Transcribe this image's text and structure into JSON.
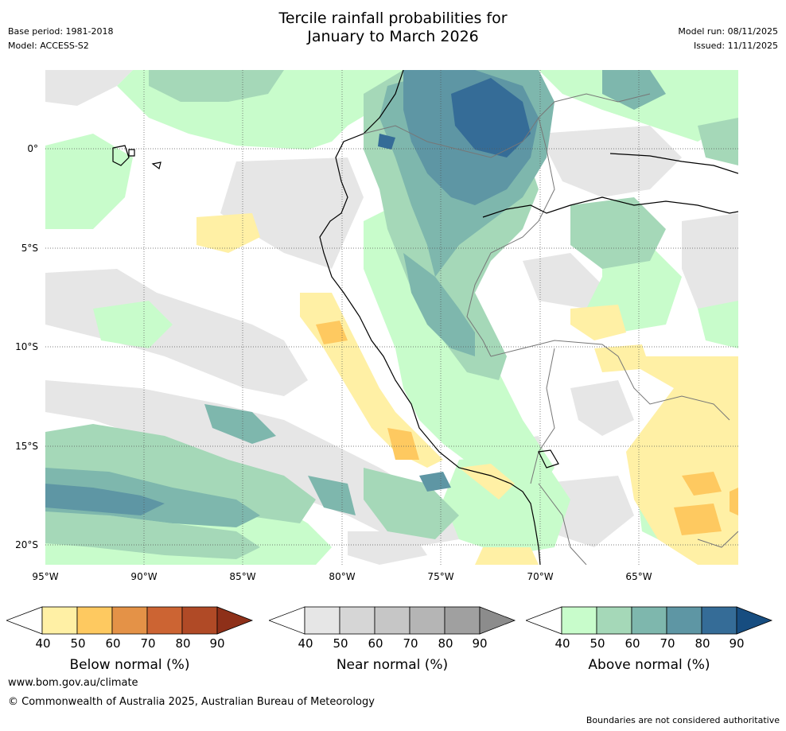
{
  "header": {
    "title_line1": "Tercile rainfall probabilities for",
    "title_line2": "January to March 2026",
    "base_period": "Base period: 1981-2018",
    "model": "Model: ACCESS-S2",
    "model_run": "Model run: 08/11/2025",
    "issued": "Issued: 11/11/2025"
  },
  "map": {
    "lon_labels": [
      "95°W",
      "90°W",
      "85°W",
      "80°W",
      "75°W",
      "70°W",
      "65°W"
    ],
    "lat_labels": [
      "0°",
      "5°S",
      "10°S",
      "15°S",
      "20°S"
    ]
  },
  "colorbars": [
    {
      "id": "below",
      "title": "Below normal (%)",
      "ticks": [
        "40",
        "50",
        "60",
        "70",
        "80",
        "90"
      ],
      "colors": [
        "#fff0a5",
        "#fec960",
        "#e49247",
        "#cc6433",
        "#b04a26",
        "#8e3019"
      ]
    },
    {
      "id": "near",
      "title": "Near normal (%)",
      "ticks": [
        "40",
        "50",
        "60",
        "70",
        "80",
        "90"
      ],
      "colors": [
        "#e6e6e6",
        "#d6d6d6",
        "#c6c6c6",
        "#b5b5b5",
        "#a0a0a0",
        "#8c8c8c"
      ]
    },
    {
      "id": "above",
      "title": "Above normal (%)",
      "ticks": [
        "40",
        "50",
        "60",
        "70",
        "80",
        "90"
      ],
      "colors": [
        "#c8fccb",
        "#a5d8b8",
        "#7eb7ad",
        "#5e96a4",
        "#356c97",
        "#174d80"
      ]
    }
  ],
  "footer": {
    "website": "www.bom.gov.au/climate",
    "copyright": "© Commonwealth of Australia 2025, Australian Bureau of Meteorology",
    "disclaimer": "Boundaries are not considered authoritative"
  }
}
